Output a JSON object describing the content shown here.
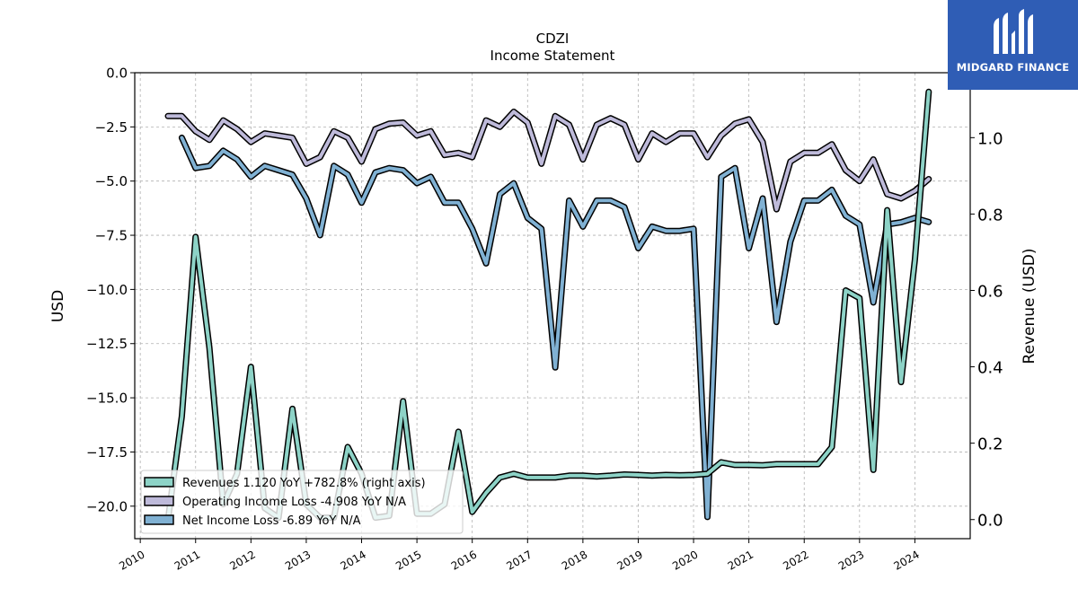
{
  "chart_data": {
    "type": "line",
    "title": "CDZI",
    "subtitle": "Income Statement",
    "ylabel": "USD",
    "y2label": "Revenue (USD)",
    "ylim": [
      -21.5,
      0
    ],
    "y2lim": [
      -0.05,
      1.17
    ],
    "xlim": [
      2009.9,
      2025.0
    ],
    "yticks": [
      0.0,
      -2.5,
      -5.0,
      -7.5,
      -10.0,
      -12.5,
      -15.0,
      -17.5,
      -20.0
    ],
    "ytick_labels": [
      "0.0",
      "−2.5",
      "−5.0",
      "−7.5",
      "−10.0",
      "−12.5",
      "−15.0",
      "−17.5",
      "−20.0"
    ],
    "y2ticks": [
      0.0,
      0.2,
      0.4,
      0.6,
      0.8,
      1.0
    ],
    "y2tick_labels": [
      "0.0",
      "0.2",
      "0.4",
      "0.6",
      "0.8",
      "1.0"
    ],
    "xticks": [
      2010,
      2011,
      2012,
      2013,
      2014,
      2015,
      2016,
      2017,
      2018,
      2019,
      2020,
      2021,
      2022,
      2023,
      2024
    ],
    "xtick_labels": [
      "2010",
      "2011",
      "2012",
      "2013",
      "2014",
      "2015",
      "2016",
      "2017",
      "2018",
      "2019",
      "2020",
      "2021",
      "2022",
      "2023",
      "2024"
    ],
    "grid": true,
    "legend_position": "lower-left",
    "series": [
      {
        "name": "Revenues 1.120 YoY +782.8% (right axis)",
        "axis": "right",
        "color": "#8dd3c7",
        "x": [
          2010.5,
          2010.75,
          2011.0,
          2011.25,
          2011.5,
          2011.75,
          2012.0,
          2012.25,
          2012.5,
          2012.75,
          2013.0,
          2013.25,
          2013.5,
          2013.75,
          2014.0,
          2014.25,
          2014.5,
          2014.75,
          2015.0,
          2015.25,
          2015.5,
          2015.75,
          2016.0,
          2016.25,
          2016.5,
          2016.75,
          2017.0,
          2017.25,
          2017.5,
          2017.75,
          2018.0,
          2018.25,
          2018.5,
          2018.75,
          2019.0,
          2019.25,
          2019.5,
          2019.75,
          2020.0,
          2020.25,
          2020.5,
          2020.75,
          2021.0,
          2021.25,
          2021.5,
          2021.75,
          2022.0,
          2022.25,
          2022.5,
          2022.75,
          2023.0,
          2023.25,
          2023.5,
          2023.75,
          2024.0,
          2024.25
        ],
        "values": [
          0.0,
          0.27,
          0.74,
          0.45,
          0.04,
          0.12,
          0.4,
          0.03,
          0.005,
          0.29,
          0.04,
          0.005,
          0.005,
          0.19,
          0.12,
          0.005,
          0.01,
          0.31,
          0.015,
          0.015,
          0.04,
          0.23,
          0.02,
          0.07,
          0.11,
          0.12,
          0.11,
          0.11,
          0.11,
          0.115,
          0.115,
          0.113,
          0.115,
          0.118,
          0.117,
          0.115,
          0.117,
          0.116,
          0.117,
          0.12,
          0.15,
          0.143,
          0.143,
          0.142,
          0.145,
          0.145,
          0.145,
          0.145,
          0.19,
          0.6,
          0.58,
          0.13,
          0.81,
          0.36,
          0.68,
          1.12
        ]
      },
      {
        "name": "Operating Income Loss -4.908 YoY N/A",
        "axis": "left",
        "color": "#bebada",
        "x": [
          2010.5,
          2010.75,
          2011.0,
          2011.25,
          2011.5,
          2011.75,
          2012.0,
          2012.25,
          2012.5,
          2012.75,
          2013.0,
          2013.25,
          2013.5,
          2013.75,
          2014.0,
          2014.25,
          2014.5,
          2014.75,
          2015.0,
          2015.25,
          2015.5,
          2015.75,
          2016.0,
          2016.25,
          2016.5,
          2016.75,
          2017.0,
          2017.25,
          2017.5,
          2017.75,
          2018.0,
          2018.25,
          2018.5,
          2018.75,
          2019.0,
          2019.25,
          2019.5,
          2019.75,
          2020.0,
          2020.25,
          2020.5,
          2020.75,
          2021.0,
          2021.25,
          2021.5,
          2021.75,
          2022.0,
          2022.25,
          2022.5,
          2022.75,
          2023.0,
          2023.25,
          2023.5,
          2023.75,
          2024.0,
          2024.25
        ],
        "values": [
          -2.0,
          -2.0,
          -2.7,
          -3.1,
          -2.2,
          -2.6,
          -3.2,
          -2.8,
          -2.9,
          -3.0,
          -4.2,
          -3.9,
          -2.7,
          -3.0,
          -4.1,
          -2.6,
          -2.35,
          -2.3,
          -2.9,
          -2.7,
          -3.8,
          -3.7,
          -3.9,
          -2.2,
          -2.5,
          -1.8,
          -2.3,
          -4.2,
          -2.0,
          -2.4,
          -4.0,
          -2.4,
          -2.1,
          -2.4,
          -4.0,
          -2.8,
          -3.2,
          -2.8,
          -2.8,
          -3.9,
          -2.9,
          -2.35,
          -2.15,
          -3.2,
          -6.3,
          -4.1,
          -3.7,
          -3.7,
          -3.3,
          -4.5,
          -5.0,
          -4.0,
          -5.6,
          -5.8,
          -5.45,
          -4.908
        ]
      },
      {
        "name": "Net Income Loss -6.89 YoY N/A",
        "axis": "left",
        "color": "#80b1d3",
        "x": [
          2010.75,
          2011.0,
          2011.25,
          2011.5,
          2011.75,
          2012.0,
          2012.25,
          2012.5,
          2012.75,
          2013.0,
          2013.25,
          2013.5,
          2013.75,
          2014.0,
          2014.25,
          2014.5,
          2014.75,
          2015.0,
          2015.25,
          2015.5,
          2015.75,
          2016.0,
          2016.25,
          2016.5,
          2016.75,
          2017.0,
          2017.25,
          2017.5,
          2017.75,
          2018.0,
          2018.25,
          2018.5,
          2018.75,
          2019.0,
          2019.25,
          2019.5,
          2019.75,
          2020.0,
          2020.25,
          2020.5,
          2020.75,
          2021.0,
          2021.25,
          2021.5,
          2021.75,
          2022.0,
          2022.25,
          2022.5,
          2022.75,
          2023.0,
          2023.25,
          2023.5,
          2023.75,
          2024.0,
          2024.25
        ],
        "values": [
          -3.0,
          -4.4,
          -4.3,
          -3.6,
          -4.0,
          -4.8,
          -4.3,
          -4.5,
          -4.7,
          -5.8,
          -7.5,
          -4.3,
          -4.7,
          -6.0,
          -4.6,
          -4.4,
          -4.5,
          -5.1,
          -4.8,
          -6.0,
          -6.0,
          -7.2,
          -8.8,
          -5.6,
          -5.1,
          -6.7,
          -7.2,
          -13.6,
          -5.9,
          -7.1,
          -5.9,
          -5.9,
          -6.2,
          -8.1,
          -7.1,
          -7.3,
          -7.3,
          -7.2,
          -20.5,
          -4.8,
          -4.4,
          -8.1,
          -5.8,
          -11.5,
          -7.8,
          -5.9,
          -5.9,
          -5.4,
          -6.6,
          -7.0,
          -10.6,
          -7.0,
          -6.9,
          -6.7,
          -6.89
        ]
      }
    ]
  },
  "logo": {
    "text": "MIDGARD FINANCE",
    "background": "#2f5db5",
    "icon": "midgard-finance-logo-icon"
  }
}
